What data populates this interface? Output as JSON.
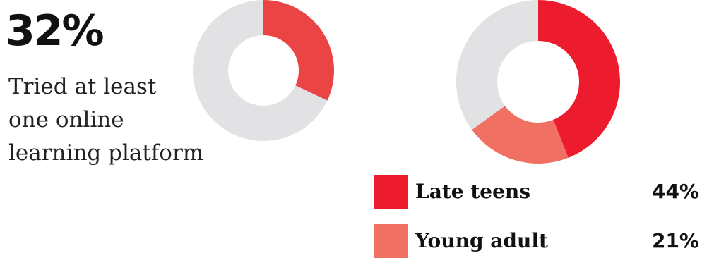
{
  "stat": {
    "figure": "32%",
    "caption_lines": [
      "Tried at least",
      "one online",
      "learning platform"
    ]
  },
  "colors": {
    "track": "#e2e2e4",
    "left_fill": "#ea4444",
    "late_teens": "#ec1c2e",
    "young_adult": "#f07064"
  },
  "chart_data": [
    {
      "type": "pie",
      "variant": "donut",
      "values": [
        32,
        68
      ],
      "slice_colors": [
        "#ea4444",
        "#e2e2e4"
      ]
    },
    {
      "type": "pie",
      "variant": "donut",
      "categories": [
        "Late teens",
        "Young adult"
      ],
      "values": [
        44,
        21
      ],
      "value_labels": [
        "44%",
        "21%"
      ],
      "remainder": 35,
      "slice_colors": [
        "#ec1c2e",
        "#f07064",
        "#e2e2e4"
      ],
      "legend": "bottom-right"
    }
  ]
}
